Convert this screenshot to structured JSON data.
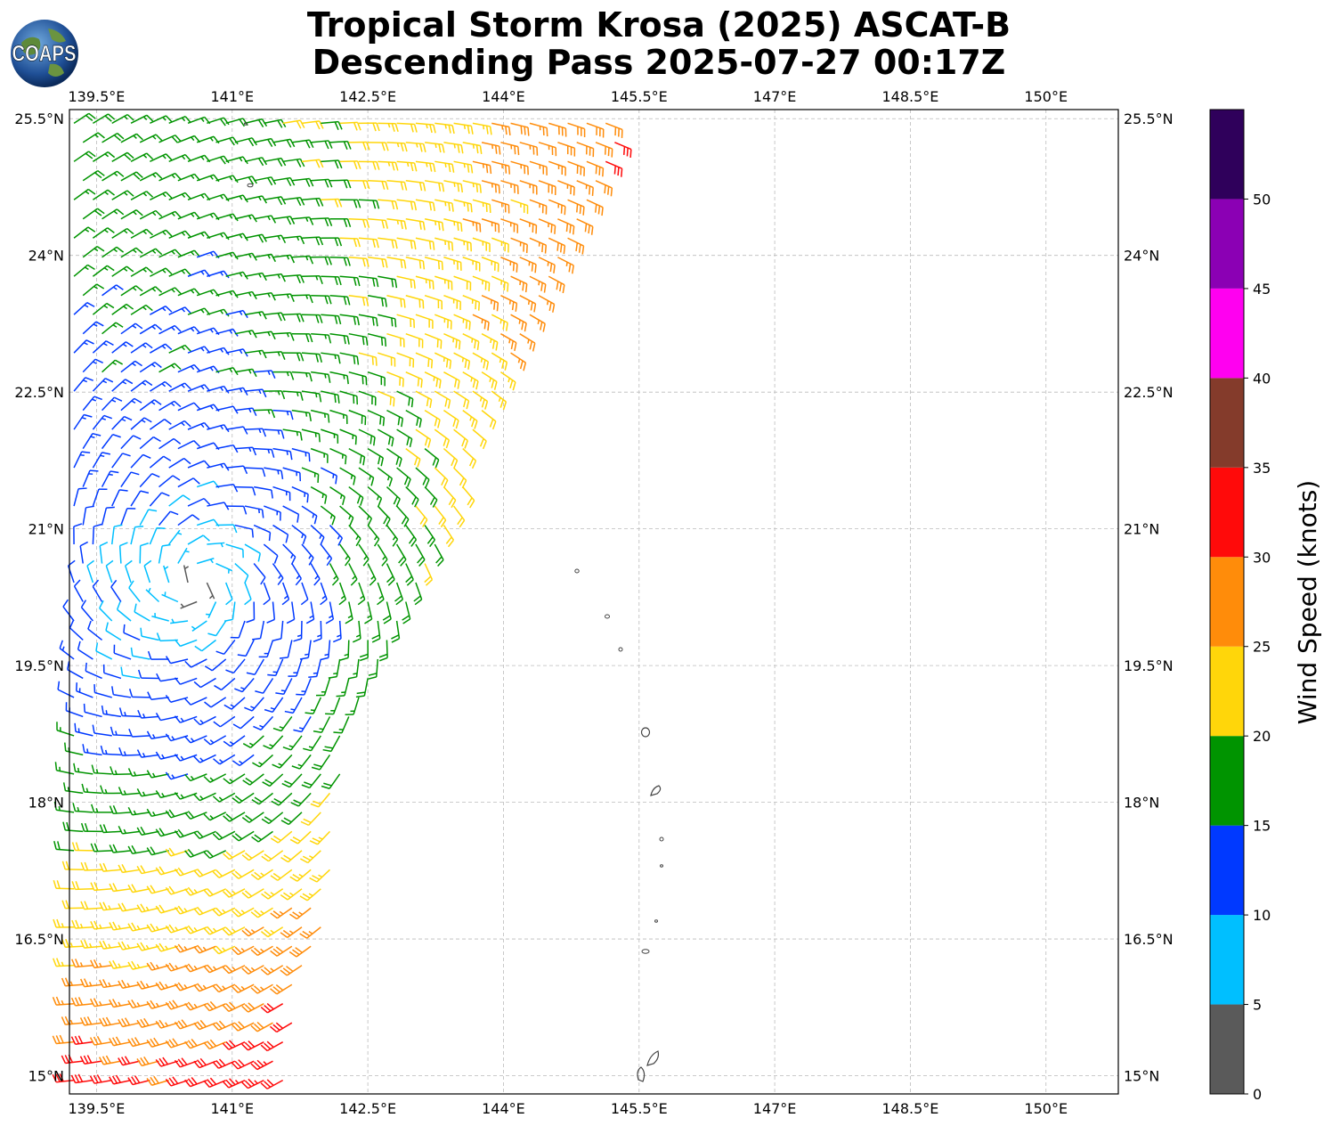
{
  "title_line1": "Tropical Storm Krosa (2025) ASCAT-B",
  "title_line2": "Descending Pass 2025-07-27 00:17Z",
  "logo_text": "COAPS",
  "map": {
    "lon_ticks": [
      "139.5°E",
      "141°E",
      "142.5°E",
      "144°E",
      "145.5°E",
      "147°E",
      "148.5°E",
      "150°E"
    ],
    "lat_ticks": [
      "25.5°N",
      "24°N",
      "22.5°N",
      "21°N",
      "19.5°N",
      "18°N",
      "16.5°N",
      "15°N"
    ],
    "lon_range": [
      139.2,
      150.8
    ],
    "lat_range": [
      14.8,
      25.6
    ],
    "grid": true,
    "storm_center_approx": {
      "lon": 140.6,
      "lat": 20.4
    },
    "swath_east_edge": [
      [
        145.3,
        25.4
      ],
      [
        144.6,
        23.7
      ],
      [
        143.9,
        22.2
      ],
      [
        143.1,
        20.5
      ],
      [
        142.3,
        18.9
      ],
      [
        142.0,
        16.5
      ],
      [
        141.6,
        15.4
      ]
    ]
  },
  "colorbar": {
    "label": "Wind Speed (knots)",
    "ticks": [
      "0",
      "5",
      "10",
      "15",
      "20",
      "25",
      "30",
      "35",
      "40",
      "45",
      "50"
    ],
    "colors": [
      "#5a5a5a",
      "#00bfff",
      "#0039ff",
      "#009400",
      "#ffd60a",
      "#ff8c0a",
      "#ff0a0a",
      "#843b2b",
      "#ff00f0",
      "#8b00b4",
      "#2f005b"
    ]
  }
}
